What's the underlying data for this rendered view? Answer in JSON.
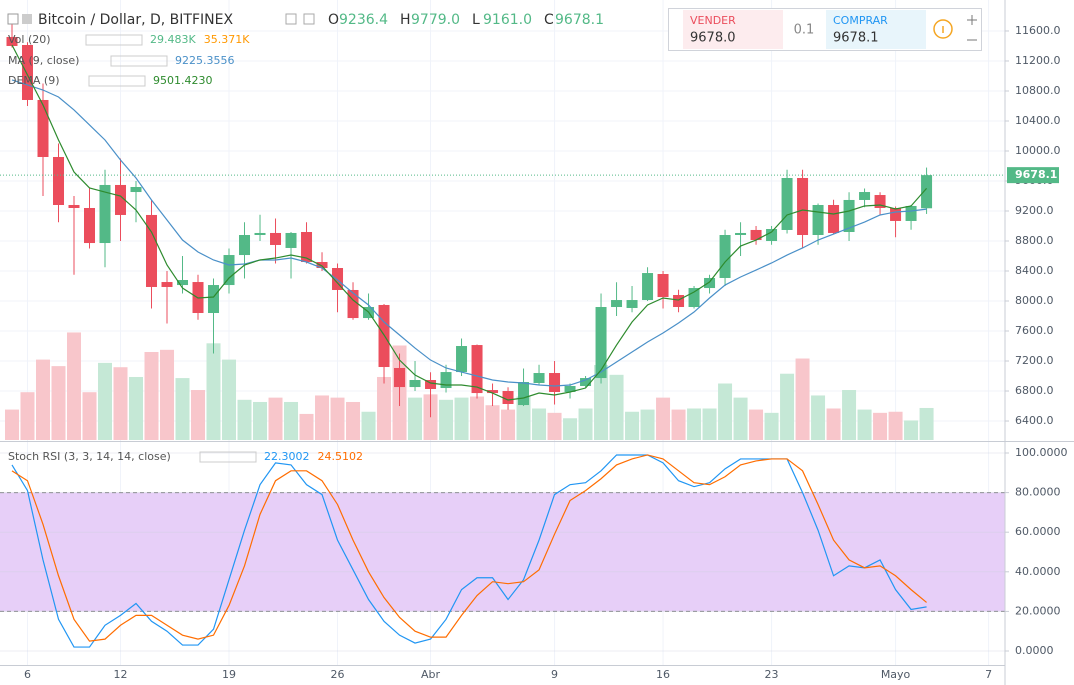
{
  "header": {
    "title": "Bitcoin / Dollar, D, BITFINEX",
    "ohlc": [
      {
        "key": "O",
        "value": "9236.4"
      },
      {
        "key": "H",
        "value": "9779.0"
      },
      {
        "key": "L",
        "value": "9161.0"
      },
      {
        "key": "C",
        "value": "9678.1"
      }
    ]
  },
  "trade": {
    "sell_label": "VENDER",
    "sell_price": "9678.0",
    "spread": "0.1",
    "buy_label": "COMPRAR",
    "buy_price": "9678.1"
  },
  "chart_data": [
    {
      "type": "candlestick",
      "up_color": "#53b987",
      "down_color": "#eb4d5c",
      "xlim": [
        -0.774,
        64.06
      ],
      "ylim": [
        6147,
        12013
      ],
      "yticks": [
        {
          "value": 6400,
          "label": "6400.0"
        },
        {
          "value": 6800,
          "label": "6800.0"
        },
        {
          "value": 7200,
          "label": "7200.0"
        },
        {
          "value": 7600,
          "label": "7600.0"
        },
        {
          "value": 8000,
          "label": "8000.0"
        },
        {
          "value": 8400,
          "label": "8400.0"
        },
        {
          "value": 8800,
          "label": "8800.0"
        },
        {
          "value": 9200,
          "label": "9200.0"
        },
        {
          "value": 9600,
          "label": "9600.0"
        },
        {
          "value": 10000,
          "label": "10000.0"
        },
        {
          "value": 10400,
          "label": "10400.0"
        },
        {
          "value": 10800,
          "label": "10800.0"
        },
        {
          "value": 11200,
          "label": "11200.0"
        },
        {
          "value": 11600,
          "label": "11600.0"
        }
      ],
      "grid": true,
      "open": [
        11520,
        11413,
        10680,
        9920,
        9280,
        9240,
        8773,
        9547,
        9453,
        9147,
        8253,
        8213,
        8253,
        7840,
        8213,
        8613,
        8880,
        8907,
        8707,
        8920,
        8520,
        8440,
        8147,
        7773,
        7947,
        7107,
        6853,
        6947,
        6840,
        7053,
        7413,
        6813,
        6800,
        6613,
        6907,
        7040,
        6787,
        6867,
        6973,
        7920,
        7907,
        8013,
        8360,
        8080,
        7920,
        8173,
        8307,
        8880,
        8947,
        8800,
        8947,
        9640,
        8880,
        9280,
        8920,
        9347,
        9413,
        9240,
        9067,
        9236.4
      ],
      "high": [
        11690,
        11450,
        10900,
        10100,
        9400,
        9500,
        9750,
        9900,
        9600,
        9350,
        8400,
        8600,
        8350,
        8300,
        8700,
        9050,
        9150,
        9100,
        8920,
        9050,
        8650,
        8500,
        8250,
        8100,
        7960,
        7300,
        7200,
        7050,
        7150,
        7500,
        7420,
        6900,
        6850,
        7100,
        7150,
        7200,
        6900,
        7000,
        8100,
        8250,
        8200,
        8450,
        8400,
        8150,
        8200,
        8350,
        8950,
        9050,
        9000,
        9000,
        9750,
        9750,
        9300,
        9350,
        9450,
        9500,
        9450,
        9260,
        9280,
        9779
      ],
      "low": [
        11380,
        10600,
        9400,
        9050,
        8350,
        8700,
        8450,
        8800,
        9050,
        7900,
        7700,
        8100,
        7750,
        7300,
        8100,
        8300,
        8800,
        8500,
        8300,
        8500,
        8400,
        7850,
        7750,
        7750,
        6900,
        6600,
        6800,
        6450,
        6780,
        7000,
        6700,
        6600,
        6550,
        6600,
        6880,
        6620,
        6700,
        6850,
        6900,
        7800,
        7850,
        8000,
        7900,
        7850,
        7900,
        8100,
        8200,
        8600,
        8750,
        8750,
        8900,
        8700,
        8750,
        8900,
        8800,
        9250,
        9150,
        8850,
        8950,
        9161
      ],
      "close": [
        11400,
        10680,
        9920,
        9280,
        9240,
        8773,
        9547,
        9147,
        9520,
        8187,
        8187,
        8280,
        7840,
        8213,
        8613,
        8880,
        8907,
        8747,
        8907,
        8520,
        8440,
        8147,
        7773,
        7920,
        7120,
        6853,
        6947,
        6827,
        7053,
        7400,
        6773,
        6773,
        6627,
        6920,
        7040,
        6787,
        6867,
        6973,
        7920,
        8013,
        8013,
        8373,
        8053,
        7920,
        8173,
        8307,
        8880,
        8907,
        8813,
        8960,
        9640,
        8880,
        9280,
        8907,
        9347,
        9453,
        9240,
        9067,
        9267,
        9678.1
      ],
      "volume": {
        "name": "Vol (20)",
        "ylim": [
          0,
          405
        ],
        "up_color": "#c5e8d6",
        "down_color": "#f8c6cb",
        "legend_values": [
          "29.483K",
          "35.371K"
        ],
        "legend_colors": [
          "#53b987",
          "#ff9800"
        ],
        "values": [
          28,
          44,
          74,
          68,
          99,
          44,
          71,
          67,
          58,
          81,
          83,
          57,
          46,
          89,
          74,
          37,
          35,
          39,
          35,
          24,
          41,
          39,
          35,
          26,
          58,
          87,
          39,
          42,
          37,
          39,
          40,
          32,
          28,
          40,
          29,
          25,
          20,
          29,
          69,
          60,
          26,
          28,
          39,
          28,
          29,
          29,
          52,
          39,
          28,
          25,
          61,
          75,
          41,
          29,
          46,
          28,
          25,
          26,
          18,
          29.483
        ]
      },
      "series": [
        {
          "name": "MA (9, close)",
          "color": "#4a90c8",
          "legend_value": "9225.3556",
          "values": [
            10947,
            10880,
            10813,
            10720,
            10547,
            10347,
            10147,
            9880,
            9640,
            9347,
            9080,
            8813,
            8653,
            8547,
            8480,
            8493,
            8547,
            8547,
            8573,
            8520,
            8440,
            8280,
            8107,
            7947,
            7720,
            7547,
            7373,
            7213,
            7107,
            7053,
            7000,
            6947,
            6920,
            6907,
            6880,
            6867,
            6880,
            6947,
            7053,
            7187,
            7320,
            7453,
            7573,
            7707,
            7853,
            8040,
            8213,
            8320,
            8413,
            8507,
            8613,
            8707,
            8813,
            8893,
            8973,
            9053,
            9147,
            9187,
            9200,
            9225.3556
          ]
        },
        {
          "name": "DEMA (9)",
          "color": "#2e8b2e",
          "legend_value": "9501.4230",
          "values": [
            11413,
            11013,
            10613,
            10147,
            9720,
            9507,
            9453,
            9400,
            9213,
            8920,
            8480,
            8173,
            8040,
            8053,
            8307,
            8480,
            8547,
            8573,
            8613,
            8573,
            8467,
            8240,
            8013,
            7853,
            7547,
            7213,
            7013,
            6907,
            6880,
            6880,
            6853,
            6773,
            6680,
            6707,
            6773,
            6747,
            6787,
            6840,
            7080,
            7413,
            7720,
            7947,
            8040,
            8013,
            8120,
            8253,
            8520,
            8733,
            8813,
            8920,
            9147,
            9213,
            9187,
            9160,
            9200,
            9267,
            9280,
            9227,
            9267,
            9501.423
          ]
        }
      ]
    },
    {
      "type": "line",
      "title": "Stoch RSI (3, 3, 14, 14, close)",
      "xlim": [
        -0.774,
        64.06
      ],
      "ylim": [
        -7.07,
        105.05
      ],
      "yticks": [
        {
          "value": 0,
          "label": "0.0000"
        },
        {
          "value": 20,
          "label": "20.0000"
        },
        {
          "value": 40,
          "label": "40.0000"
        },
        {
          "value": 60,
          "label": "60.0000"
        },
        {
          "value": 80,
          "label": "80.0000"
        },
        {
          "value": 100,
          "label": "100.0000"
        }
      ],
      "band": [
        20,
        80
      ],
      "band_color": "#e7cff8",
      "xticks": [
        {
          "value": 1,
          "label": "6"
        },
        {
          "value": 7,
          "label": "12"
        },
        {
          "value": 14,
          "label": "19"
        },
        {
          "value": 21,
          "label": "26"
        },
        {
          "value": 27,
          "label": "Abr"
        },
        {
          "value": 35,
          "label": "9"
        },
        {
          "value": 42,
          "label": "16"
        },
        {
          "value": 49,
          "label": "23"
        },
        {
          "value": 57,
          "label": "Mayo"
        },
        {
          "value": 63,
          "label": "7"
        }
      ],
      "series": [
        {
          "color": "#2196f3",
          "legend_value": "22.3002",
          "values": [
            94,
            81,
            46,
            16,
            2,
            2,
            13,
            18,
            24,
            15,
            10,
            3,
            3,
            11,
            36,
            61,
            84,
            95,
            94,
            84,
            79,
            56,
            41,
            26,
            15,
            8,
            4,
            6,
            16,
            31,
            37,
            37,
            26,
            36,
            56,
            79,
            84,
            85,
            91,
            99,
            99,
            99,
            95,
            86,
            83,
            85,
            92,
            97,
            97,
            97,
            97,
            80,
            61,
            38,
            43,
            42,
            46,
            31,
            21,
            22.3002
          ]
        },
        {
          "color": "#ff6d00",
          "legend_value": "24.5102",
          "values": [
            91,
            86,
            64,
            38,
            16,
            5,
            6,
            13,
            18,
            18,
            13,
            8,
            6,
            8,
            23,
            43,
            69,
            86,
            91,
            91,
            86,
            74,
            56,
            40,
            27,
            17,
            10,
            7,
            7,
            18,
            28,
            35,
            34,
            35,
            41,
            59,
            76,
            81,
            87,
            94,
            97,
            99,
            97,
            91,
            85,
            84,
            88,
            94,
            96,
            97,
            97,
            91,
            74,
            56,
            46,
            42,
            43,
            38,
            31,
            24.5102
          ]
        }
      ]
    }
  ]
}
